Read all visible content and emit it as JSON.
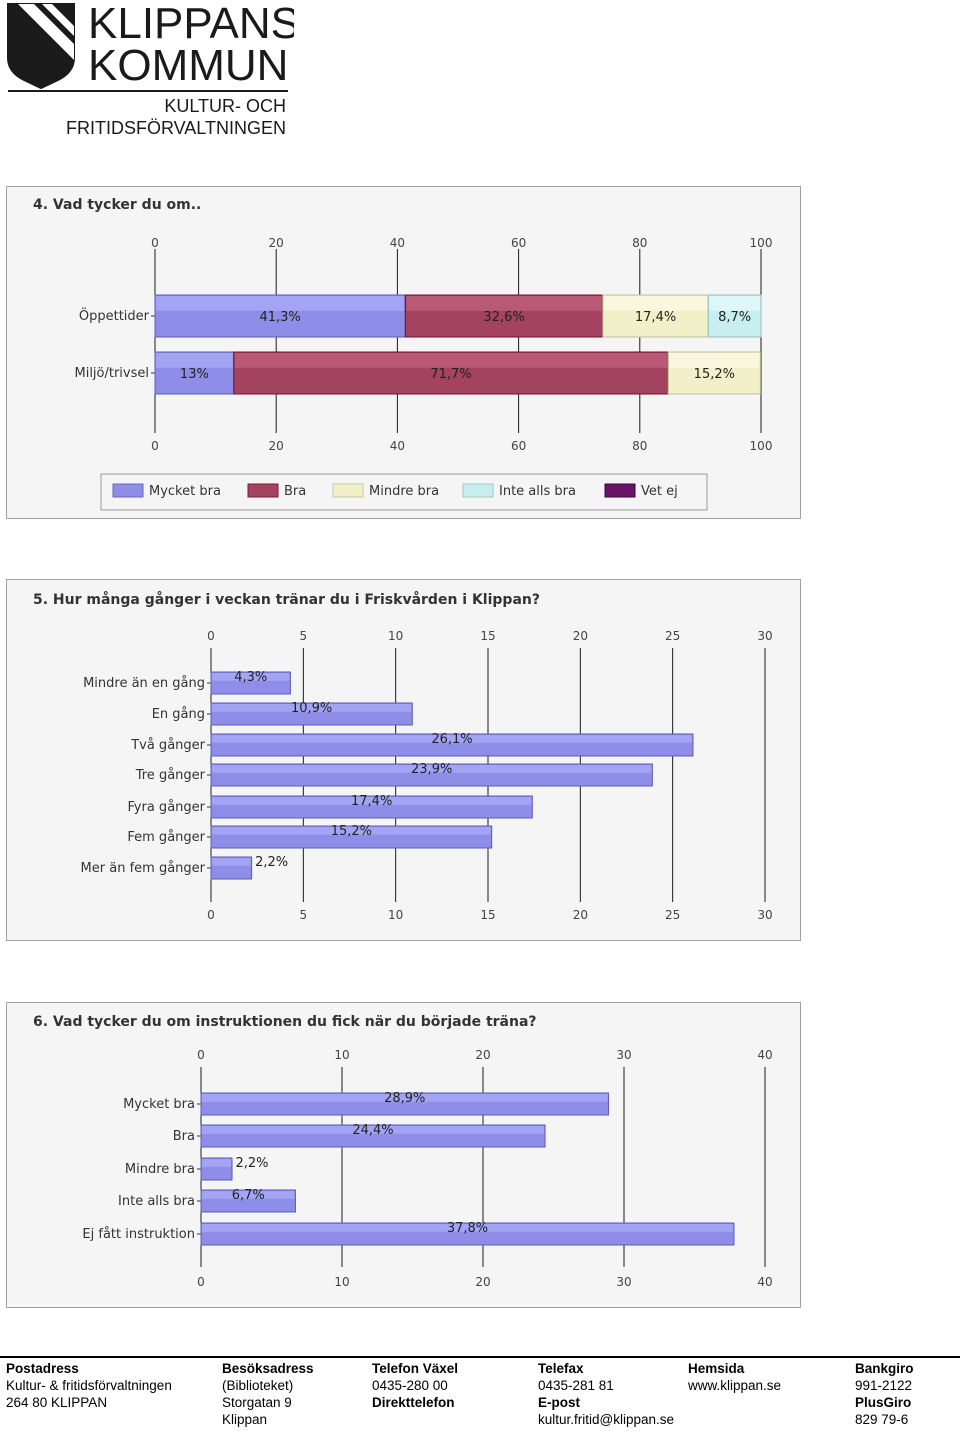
{
  "logo": {
    "name_line1": "KLIPPANS",
    "name_line2": "KOMMUN",
    "dept_line1": "KULTUR- OCH",
    "dept_line2": "FRITIDSFÖRVALTNINGEN",
    "colors": {
      "dark": "#1a1a1a",
      "stripe": "#ffffff"
    }
  },
  "chart_data": [
    {
      "type": "bar",
      "orientation": "horizontal",
      "stacked": true,
      "title": "4. Vad tycker du om..",
      "categories": [
        "Öppettider",
        "Miljö/trivsel"
      ],
      "series": [
        {
          "name": "Mycket bra",
          "color": "#8e8ee8",
          "values": [
            41.3,
            13
          ]
        },
        {
          "name": "Bra",
          "color": "#a3435f",
          "values": [
            32.6,
            71.7
          ]
        },
        {
          "name": "Mindre bra",
          "color": "#f1f0c8",
          "values": [
            17.4,
            15.2
          ]
        },
        {
          "name": "Inte alls bra",
          "color": "#c8eef0",
          "values": [
            8.7,
            0
          ]
        },
        {
          "name": "Vet ej",
          "color": "#6a1466",
          "values": [
            0,
            0
          ]
        }
      ],
      "data_labels": [
        [
          "41,3%",
          "32,6%",
          "17,4%",
          "8,7%",
          ""
        ],
        [
          "13%",
          "71,7%",
          "15,2%",
          "",
          ""
        ]
      ],
      "xlim": [
        0,
        100
      ],
      "xticks": [
        "0",
        "20",
        "40",
        "60",
        "80",
        "100"
      ],
      "legend_position": "bottom"
    },
    {
      "type": "bar",
      "orientation": "horizontal",
      "title": "5. Hur många gånger i veckan tränar du i Friskvården i Klippan?",
      "categories": [
        "Mindre än en gång",
        "En gång",
        "Två gånger",
        "Tre gånger",
        "Fyra gånger",
        "Fem gånger",
        "Mer än fem gånger"
      ],
      "values": [
        4.3,
        10.9,
        26.1,
        23.9,
        17.4,
        15.2,
        2.2
      ],
      "data_labels": [
        "4,3%",
        "10,9%",
        "26,1%",
        "23,9%",
        "17,4%",
        "15,2%",
        "2,2%"
      ],
      "color": "#8e8ee8",
      "xlim": [
        0,
        30
      ],
      "xticks": [
        "0",
        "5",
        "10",
        "15",
        "20",
        "25",
        "30"
      ]
    },
    {
      "type": "bar",
      "orientation": "horizontal",
      "title": "6. Vad tycker du om instruktionen du fick när du började träna?",
      "categories": [
        "Mycket bra",
        "Bra",
        "Mindre bra",
        "Inte alls bra",
        "Ej fått instruktion"
      ],
      "values": [
        28.9,
        24.4,
        2.2,
        6.7,
        37.8
      ],
      "data_labels": [
        "28,9%",
        "24,4%",
        "2,2%",
        "6,7%",
        "37,8%"
      ],
      "color": "#8e8ee8",
      "xlim": [
        0,
        40
      ],
      "xticks": [
        "0",
        "10",
        "20",
        "30",
        "40"
      ]
    }
  ],
  "footer": {
    "columns": [
      {
        "head": "Postadress",
        "lines": [
          "Kultur- & fritidsförvaltningen",
          "264 80 KLIPPAN",
          ""
        ]
      },
      {
        "head": "Besöksadress",
        "lines": [
          "(Biblioteket)",
          "Storgatan 9",
          "Klippan"
        ]
      },
      {
        "head": "Telefon Växel",
        "lines": [
          "0435-280 00",
          "Direkttelefon",
          ""
        ]
      },
      {
        "head": "Telefax",
        "lines": [
          "0435-281 81",
          "E-post",
          "kultur.fritid@klippan.se"
        ]
      },
      {
        "head": "Hemsida",
        "lines": [
          "www.klippan.se",
          "",
          ""
        ]
      },
      {
        "head": "Bankgiro",
        "lines": [
          "991-2122",
          "PlusGiro",
          "829 79-6"
        ]
      }
    ]
  }
}
